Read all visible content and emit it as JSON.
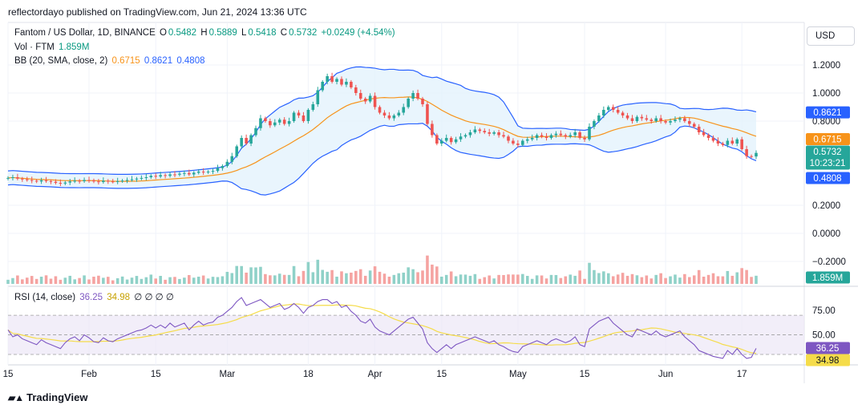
{
  "caption": "reflectordayo published on TradingView.com, Jun 21, 2024 13:36 UTC",
  "brand": "TradingView",
  "currency_label": "USD",
  "legend": {
    "title": "Fantom / US Dollar, 1D, BINANCE",
    "o_label": "O",
    "o": "0.5482",
    "h_label": "H",
    "h": "0.5889",
    "l_label": "L",
    "l": "0.5418",
    "c_label": "C",
    "c": "0.5732",
    "change": "+0.0249 (+4.54%)",
    "vol_label": "Vol · FTM",
    "vol": "1.859M",
    "bb_label": "BB (20, SMA, close, 2)",
    "bb_mid": "0.6715",
    "bb_upper": "0.8621",
    "bb_lower": "0.4808",
    "rsi_label": "RSI (14, close)",
    "rsi": "36.25",
    "rsi_ma": "34.98",
    "rsi_extra": "∅ ∅ ∅ ∅"
  },
  "colors": {
    "up": "#26a69a",
    "down": "#ef5350",
    "vol_up": "#8fd1c8",
    "vol_down": "#f5a3a1",
    "bb_line": "#2962ff",
    "bb_fill": "#e3f2fd",
    "basis": "#f7931a",
    "rsi": "#7e57c2",
    "rsi_ma": "#f5dc4a"
  },
  "chart_data": {
    "type": "candlestick",
    "price_axis": {
      "ticks": [
        1.2,
        1.0,
        0.8,
        0.2,
        0.0,
        -0.2
      ],
      "tick_labels": [
        "1.2000",
        "1.0000",
        "0.8000",
        "0.2000",
        "0.0000",
        "−0.2000"
      ]
    },
    "rsi_axis": {
      "ticks": [
        75,
        50
      ],
      "tick_labels": [
        "75.00",
        "50.00"
      ],
      "bands": [
        70,
        50,
        30
      ]
    },
    "x_axis_labels": [
      {
        "label": "15",
        "bar": 0
      },
      {
        "label": "Feb",
        "bar": 17
      },
      {
        "label": "15",
        "bar": 31
      },
      {
        "label": "Mar",
        "bar": 46
      },
      {
        "label": "18",
        "bar": 63
      },
      {
        "label": "Apr",
        "bar": 77
      },
      {
        "label": "15",
        "bar": 91
      },
      {
        "label": "May",
        "bar": 107
      },
      {
        "label": "15",
        "bar": 121
      },
      {
        "label": "Jun",
        "bar": 138
      },
      {
        "label": "17",
        "bar": 154
      }
    ],
    "price_tags": [
      {
        "value": 0.8621,
        "label": "0.8621",
        "bg": "#2962ff",
        "color": "#ffffff"
      },
      {
        "value": 0.6715,
        "label": "0.6715",
        "bg": "#f7931a",
        "color": "#ffffff"
      },
      {
        "value": 0.5732,
        "label": "0.5732",
        "label2": "10:23:21",
        "bg": "#26a69a",
        "color": "#ffffff"
      },
      {
        "value": 0.4808,
        "label": "0.4808",
        "bg": "#2962ff",
        "color": "#ffffff"
      }
    ],
    "vol_tag": {
      "label": "1.859M",
      "bg": "#26a69a",
      "color": "#ffffff"
    },
    "rsi_tags": [
      {
        "value": 36.25,
        "label": "36.25",
        "bg": "#7e57c2",
        "color": "#ffffff"
      },
      {
        "value": 34.98,
        "label": "34.98",
        "bg": "#f5dc4a",
        "color": "#131722"
      }
    ],
    "close": [
      0.395,
      0.4,
      0.39,
      0.385,
      0.38,
      0.375,
      0.37,
      0.378,
      0.372,
      0.368,
      0.36,
      0.355,
      0.362,
      0.37,
      0.375,
      0.372,
      0.38,
      0.378,
      0.37,
      0.366,
      0.375,
      0.37,
      0.368,
      0.372,
      0.376,
      0.38,
      0.385,
      0.39,
      0.395,
      0.4,
      0.41,
      0.405,
      0.415,
      0.41,
      0.42,
      0.418,
      0.425,
      0.43,
      0.42,
      0.432,
      0.44,
      0.435,
      0.44,
      0.445,
      0.465,
      0.48,
      0.51,
      0.55,
      0.62,
      0.68,
      0.64,
      0.7,
      0.75,
      0.82,
      0.8,
      0.77,
      0.79,
      0.81,
      0.78,
      0.8,
      0.86,
      0.84,
      0.8,
      0.88,
      0.92,
      1.02,
      1.08,
      1.12,
      1.08,
      1.1,
      1.06,
      1.08,
      1.04,
      1.0,
      0.96,
      0.94,
      0.98,
      0.9,
      0.86,
      0.84,
      0.82,
      0.84,
      0.86,
      0.9,
      0.96,
      1.0,
      0.96,
      0.92,
      0.78,
      0.7,
      0.64,
      0.66,
      0.68,
      0.65,
      0.67,
      0.69,
      0.7,
      0.72,
      0.74,
      0.73,
      0.72,
      0.71,
      0.72,
      0.7,
      0.69,
      0.66,
      0.64,
      0.63,
      0.66,
      0.67,
      0.68,
      0.7,
      0.69,
      0.68,
      0.7,
      0.71,
      0.7,
      0.69,
      0.7,
      0.72,
      0.68,
      0.67,
      0.76,
      0.8,
      0.84,
      0.88,
      0.9,
      0.88,
      0.86,
      0.84,
      0.82,
      0.8,
      0.83,
      0.82,
      0.81,
      0.8,
      0.82,
      0.8,
      0.79,
      0.8,
      0.81,
      0.82,
      0.8,
      0.78,
      0.76,
      0.72,
      0.7,
      0.68,
      0.66,
      0.64,
      0.63,
      0.66,
      0.64,
      0.67,
      0.6,
      0.55,
      0.548,
      0.5732
    ],
    "rsi": [
      55,
      48,
      50,
      46,
      44,
      42,
      40,
      45,
      42,
      40,
      38,
      36,
      42,
      46,
      48,
      44,
      50,
      47,
      43,
      42,
      47,
      44,
      43,
      46,
      48,
      50,
      52,
      54,
      55,
      57,
      60,
      57,
      60,
      57,
      62,
      58,
      60,
      62,
      55,
      60,
      64,
      60,
      62,
      63,
      68,
      70,
      74,
      78,
      84,
      88,
      80,
      82,
      84,
      86,
      82,
      78,
      80,
      82,
      76,
      78,
      82,
      78,
      72,
      78,
      80,
      84,
      86,
      86,
      82,
      84,
      78,
      80,
      74,
      70,
      64,
      62,
      66,
      58,
      54,
      52,
      50,
      54,
      58,
      62,
      66,
      68,
      62,
      56,
      42,
      36,
      32,
      36,
      40,
      36,
      40,
      42,
      44,
      46,
      48,
      46,
      44,
      42,
      44,
      40,
      38,
      35,
      33,
      32,
      38,
      40,
      42,
      44,
      42,
      40,
      44,
      46,
      44,
      42,
      44,
      48,
      40,
      38,
      56,
      60,
      64,
      66,
      68,
      62,
      58,
      54,
      50,
      48,
      56,
      54,
      52,
      50,
      54,
      50,
      48,
      50,
      52,
      54,
      48,
      44,
      40,
      34,
      32,
      30,
      28,
      27,
      26,
      34,
      30,
      36,
      30,
      26,
      27,
      36.25
    ]
  }
}
